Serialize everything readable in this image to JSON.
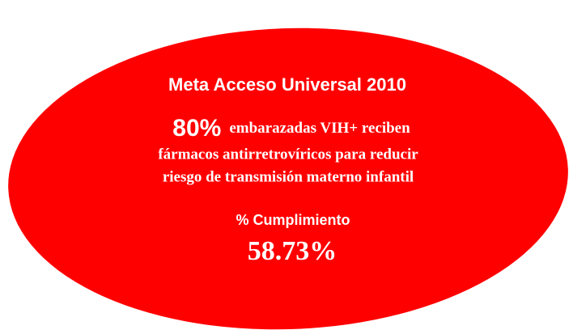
{
  "title": "Meta Acceso Universal 2010",
  "goal": {
    "highlight": "80%",
    "lines": [
      "embarazadas VIH+ reciben",
      "fármacos antirretrovíricos para reducir",
      "riesgo de transmisión materno infantil"
    ]
  },
  "result": {
    "label": "% Cumplimiento",
    "value": "58.73%"
  }
}
